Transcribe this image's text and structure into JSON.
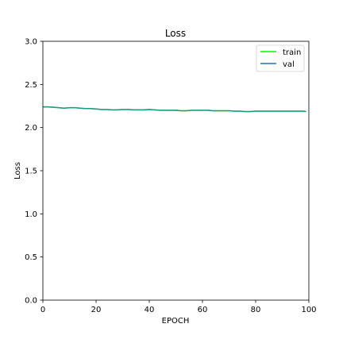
{
  "chart_data": {
    "type": "line",
    "title": "Loss",
    "xlabel": "EPOCH",
    "ylabel": "Loss",
    "xlim": [
      0,
      100
    ],
    "ylim": [
      0.0,
      3.0
    ],
    "xticks": [
      0,
      20,
      40,
      60,
      80,
      100
    ],
    "yticks": [
      0.0,
      0.5,
      1.0,
      1.5,
      2.0,
      2.5,
      3.0
    ],
    "xtick_labels": [
      "0",
      "20",
      "40",
      "60",
      "80",
      "100"
    ],
    "ytick_labels": [
      "0.0",
      "0.5",
      "1.0",
      "1.5",
      "2.0",
      "2.5",
      "3.0"
    ],
    "grid": false,
    "legend_position": "top-right",
    "series": [
      {
        "name": "train",
        "color": "#00ff00",
        "x": [
          0,
          2,
          4,
          6,
          8,
          10,
          12,
          14,
          16,
          18,
          20,
          22,
          24,
          26,
          28,
          30,
          32,
          34,
          36,
          38,
          40,
          42,
          44,
          46,
          48,
          50,
          52,
          54,
          56,
          58,
          60,
          62,
          64,
          66,
          68,
          70,
          72,
          74,
          76,
          78,
          80,
          82,
          84,
          86,
          88,
          90,
          92,
          94,
          96,
          98,
          99
        ],
        "y": [
          2.24,
          2.24,
          2.235,
          2.23,
          2.225,
          2.23,
          2.23,
          2.225,
          2.22,
          2.22,
          2.215,
          2.21,
          2.21,
          2.205,
          2.205,
          2.21,
          2.21,
          2.205,
          2.205,
          2.205,
          2.21,
          2.205,
          2.2,
          2.2,
          2.2,
          2.2,
          2.195,
          2.195,
          2.2,
          2.2,
          2.2,
          2.2,
          2.195,
          2.195,
          2.195,
          2.195,
          2.19,
          2.19,
          2.185,
          2.185,
          2.19,
          2.19,
          2.19,
          2.19,
          2.19,
          2.19,
          2.19,
          2.19,
          2.19,
          2.19,
          2.185
        ]
      },
      {
        "name": "val",
        "color": "#1f77b4",
        "x": [
          0,
          2,
          4,
          6,
          8,
          10,
          12,
          14,
          16,
          18,
          20,
          22,
          24,
          26,
          28,
          30,
          32,
          34,
          36,
          38,
          40,
          42,
          44,
          46,
          48,
          50,
          52,
          54,
          56,
          58,
          60,
          62,
          64,
          66,
          68,
          70,
          72,
          74,
          76,
          78,
          80,
          82,
          84,
          86,
          88,
          90,
          92,
          94,
          96,
          98,
          99
        ],
        "y": [
          2.24,
          2.24,
          2.235,
          2.23,
          2.225,
          2.23,
          2.23,
          2.225,
          2.22,
          2.22,
          2.215,
          2.21,
          2.21,
          2.205,
          2.205,
          2.21,
          2.21,
          2.205,
          2.205,
          2.205,
          2.21,
          2.205,
          2.2,
          2.2,
          2.2,
          2.2,
          2.195,
          2.195,
          2.2,
          2.2,
          2.2,
          2.2,
          2.195,
          2.195,
          2.195,
          2.195,
          2.19,
          2.19,
          2.185,
          2.185,
          2.19,
          2.19,
          2.19,
          2.19,
          2.19,
          2.19,
          2.19,
          2.19,
          2.19,
          2.19,
          2.185
        ]
      }
    ]
  }
}
